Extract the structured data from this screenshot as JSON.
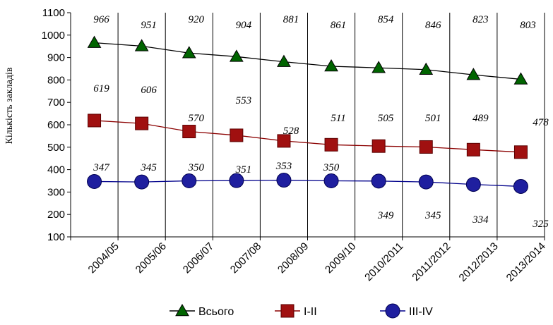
{
  "chart_data": {
    "type": "line",
    "title": "",
    "xlabel": "",
    "ylabel": "Кількість закладів",
    "ylim": [
      100,
      1100
    ],
    "yticks": [
      100,
      200,
      300,
      400,
      500,
      600,
      700,
      800,
      900,
      1000,
      1100
    ],
    "grid": "vertical",
    "legend_position": "bottom",
    "categories": [
      "2004/05",
      "2005/06",
      "2006/07",
      "2007/08",
      "2008/09",
      "2009/10",
      "2010/2011",
      "2011/2012",
      "2012/2013",
      "2013/2014"
    ],
    "series": [
      {
        "name": "Всього",
        "values": [
          966,
          951,
          920,
          904,
          881,
          861,
          854,
          846,
          823,
          803
        ],
        "color": "#000000",
        "marker": "triangle",
        "marker_color": "#006400"
      },
      {
        "name": "І-ІІ",
        "values": [
          619,
          606,
          570,
          553,
          528,
          511,
          505,
          501,
          489,
          478
        ],
        "color": "#8B0000",
        "marker": "square",
        "marker_color": "#A01010"
      },
      {
        "name": "ІІІ-ІV",
        "values": [
          347,
          345,
          350,
          351,
          353,
          350,
          349,
          345,
          334,
          325
        ],
        "color": "#00008B",
        "marker": "circle",
        "marker_color": "#1F1F9F"
      }
    ]
  }
}
